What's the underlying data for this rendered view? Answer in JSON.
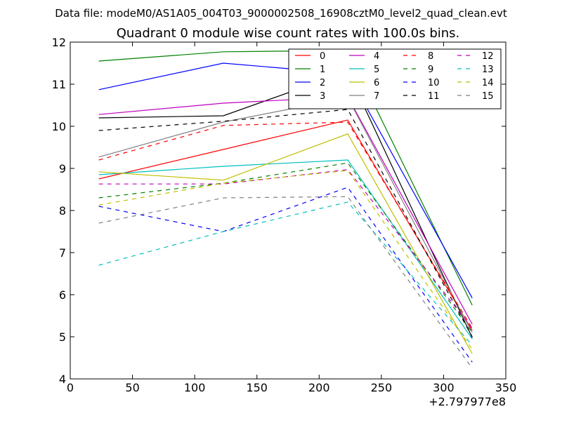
{
  "chart_data": {
    "type": "line",
    "suptitle": "Data file: modeM0/AS1A05_004T03_9000002508_16908cztM0_level2_quad_clean.evt",
    "title": "Quadrant 0 module wise count rates with 100.0s bins.",
    "xlabel": "",
    "ylabel": "",
    "x_offset_label": "+2.797977e8",
    "xlim": [
      0,
      350
    ],
    "ylim": [
      4,
      12
    ],
    "xticks": [
      "0",
      "50",
      "100",
      "150",
      "200",
      "250",
      "300",
      "350"
    ],
    "yticks": [
      "4",
      "5",
      "6",
      "7",
      "8",
      "9",
      "10",
      "11",
      "12"
    ],
    "x": [
      23,
      123,
      223,
      323
    ],
    "legend_position": "top-right",
    "series": [
      {
        "name": "0",
        "color": "#ff0000",
        "style": "solid",
        "values": [
          8.75,
          9.45,
          10.15,
          5.15
        ]
      },
      {
        "name": "1",
        "color": "#008000",
        "style": "solid",
        "values": [
          11.55,
          11.77,
          11.8,
          5.75
        ]
      },
      {
        "name": "2",
        "color": "#0000ff",
        "style": "solid",
        "values": [
          10.87,
          11.5,
          11.25,
          5.92
        ]
      },
      {
        "name": "3",
        "color": "#000000",
        "style": "solid",
        "values": [
          10.2,
          10.25,
          11.3,
          4.98
        ]
      },
      {
        "name": "4",
        "color": "#bf00bf",
        "style": "solid",
        "values": [
          10.28,
          10.55,
          10.7,
          5.3
        ]
      },
      {
        "name": "5",
        "color": "#00bfbf",
        "style": "solid",
        "values": [
          8.85,
          9.05,
          9.2,
          4.95
        ]
      },
      {
        "name": "6",
        "color": "#bfbf00",
        "style": "solid",
        "values": [
          8.92,
          8.72,
          9.82,
          4.6
        ]
      },
      {
        "name": "7",
        "color": "#808080",
        "style": "solid",
        "values": [
          9.27,
          10.1,
          10.68,
          5.1
        ]
      },
      {
        "name": "8",
        "color": "#ff0000",
        "style": "dashed",
        "values": [
          9.2,
          10.02,
          10.1,
          5.2
        ]
      },
      {
        "name": "9",
        "color": "#008000",
        "style": "dashed",
        "values": [
          8.3,
          8.65,
          9.13,
          5.1
        ]
      },
      {
        "name": "10",
        "color": "#0000ff",
        "style": "dashed",
        "values": [
          8.1,
          7.5,
          8.55,
          4.4
        ]
      },
      {
        "name": "11",
        "color": "#000000",
        "style": "dashed",
        "values": [
          9.9,
          10.12,
          10.4,
          5.0
        ]
      },
      {
        "name": "12",
        "color": "#bf00bf",
        "style": "dashed",
        "values": [
          8.63,
          8.63,
          8.97,
          5.2
        ]
      },
      {
        "name": "13",
        "color": "#00bfbf",
        "style": "dashed",
        "values": [
          6.7,
          7.5,
          8.2,
          4.8
        ]
      },
      {
        "name": "14",
        "color": "#bfbf00",
        "style": "dashed",
        "values": [
          8.13,
          8.65,
          8.95,
          4.7
        ]
      },
      {
        "name": "15",
        "color": "#808080",
        "style": "dashed",
        "values": [
          7.7,
          8.3,
          8.33,
          4.25
        ]
      }
    ]
  }
}
